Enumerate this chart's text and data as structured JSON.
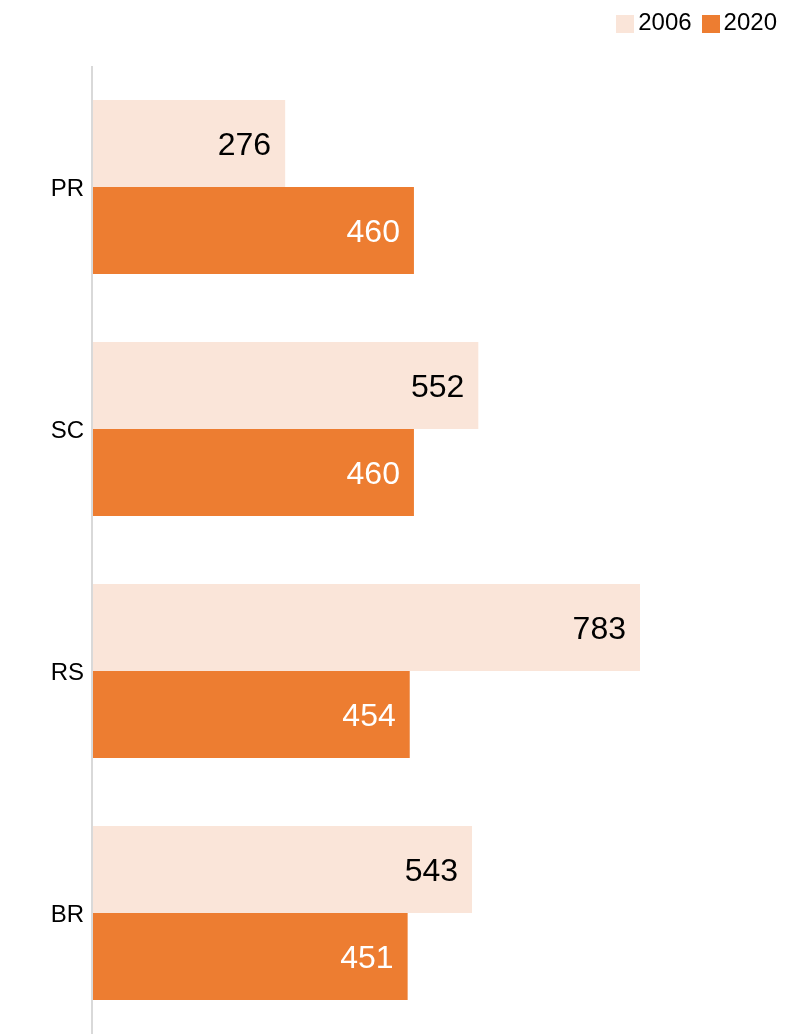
{
  "chart_data": {
    "type": "bar",
    "orientation": "horizontal",
    "categories": [
      "PR",
      "SC",
      "RS",
      "BR"
    ],
    "series": [
      {
        "name": "2006",
        "color": "#fae5d9",
        "values": [
          276,
          552,
          783,
          543
        ]
      },
      {
        "name": "2020",
        "color": "#ed7d31",
        "values": [
          460,
          460,
          454,
          451
        ]
      }
    ],
    "data_labels": true,
    "legend": "top right",
    "grid": false
  }
}
